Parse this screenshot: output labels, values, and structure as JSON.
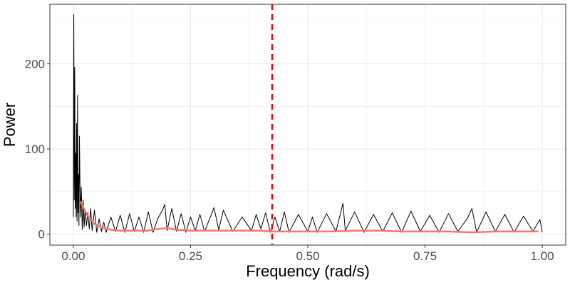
{
  "chart_data": {
    "type": "line",
    "title": "",
    "xlabel": "Frequency (rad/s)",
    "ylabel": "Power",
    "xlim": [
      -0.05,
      1.05
    ],
    "ylim": [
      -13,
      270
    ],
    "x_ticks": [
      0,
      0.25,
      0.5,
      0.75,
      1
    ],
    "x_tick_labels": [
      "0.00",
      "0.25",
      "0.50",
      "0.75",
      "1.00"
    ],
    "y_ticks": [
      0,
      100,
      200
    ],
    "y_tick_labels": [
      "0",
      "100",
      "200"
    ],
    "grid": true,
    "legend": "none",
    "colors": {
      "spectrum": "#000000",
      "smooth": "#F8766D",
      "cutoff": "#FF0000",
      "grid": "#EBEBEB",
      "panel_border": "#333333"
    },
    "series": [
      {
        "style": "black line (spectrum)",
        "x": [
          0.0,
          0.001,
          0.002,
          0.003,
          0.004,
          0.005,
          0.006,
          0.007,
          0.008,
          0.009,
          0.01,
          0.011,
          0.012,
          0.013,
          0.015,
          0.017,
          0.019,
          0.021,
          0.023,
          0.025,
          0.028,
          0.031,
          0.034,
          0.037,
          0.04,
          0.045,
          0.05,
          0.055,
          0.06,
          0.065,
          0.07,
          0.08,
          0.09,
          0.1,
          0.11,
          0.12,
          0.13,
          0.14,
          0.15,
          0.16,
          0.17,
          0.18,
          0.19,
          0.195,
          0.2,
          0.21,
          0.22,
          0.23,
          0.24,
          0.25,
          0.26,
          0.27,
          0.28,
          0.29,
          0.3,
          0.31,
          0.32,
          0.34,
          0.36,
          0.38,
          0.39,
          0.4,
          0.41,
          0.42,
          0.43,
          0.44,
          0.45,
          0.46,
          0.48,
          0.5,
          0.51,
          0.52,
          0.54,
          0.56,
          0.575,
          0.58,
          0.6,
          0.62,
          0.64,
          0.66,
          0.68,
          0.7,
          0.72,
          0.74,
          0.76,
          0.78,
          0.8,
          0.82,
          0.84,
          0.85,
          0.86,
          0.88,
          0.9,
          0.92,
          0.94,
          0.96,
          0.98,
          0.995,
          1.0
        ],
        "y": [
          20,
          258,
          40,
          196,
          30,
          95,
          20,
          130,
          15,
          163,
          25,
          70,
          10,
          115,
          20,
          55,
          5,
          40,
          8,
          28,
          10,
          25,
          6,
          30,
          4,
          28,
          2,
          18,
          3,
          14,
          2,
          20,
          3,
          22,
          2,
          24,
          3,
          20,
          2,
          26,
          2,
          18,
          28,
          35,
          4,
          30,
          3,
          24,
          2,
          20,
          4,
          23,
          3,
          17,
          31,
          5,
          28,
          3,
          20,
          4,
          23,
          6,
          25,
          2,
          20,
          3,
          26,
          2,
          23,
          3,
          20,
          2,
          24,
          3,
          36,
          4,
          26,
          2,
          23,
          3,
          25,
          2,
          27,
          3,
          22,
          2,
          24,
          3,
          18,
          30,
          2,
          26,
          3,
          23,
          2,
          21,
          3,
          17,
          2
        ]
      },
      {
        "style": "red smoothed trend",
        "x": [
          0.015,
          0.03,
          0.045,
          0.06,
          0.08,
          0.1,
          0.13,
          0.16,
          0.18,
          0.2,
          0.22,
          0.25,
          0.28,
          0.31,
          0.35,
          0.4,
          0.42,
          0.45,
          0.5,
          0.55,
          0.6,
          0.65,
          0.7,
          0.75,
          0.8,
          0.85,
          0.9,
          0.95,
          0.99
        ],
        "y": [
          38,
          22,
          12,
          8,
          5,
          4,
          4,
          4,
          6,
          7,
          5,
          4,
          4,
          4,
          4,
          4,
          3,
          3,
          3,
          3,
          4,
          4,
          3,
          3,
          3,
          2,
          3,
          3,
          3
        ]
      }
    ],
    "reference_lines": [
      {
        "axis": "x",
        "value": 0.424,
        "style": "dashed red"
      }
    ]
  }
}
